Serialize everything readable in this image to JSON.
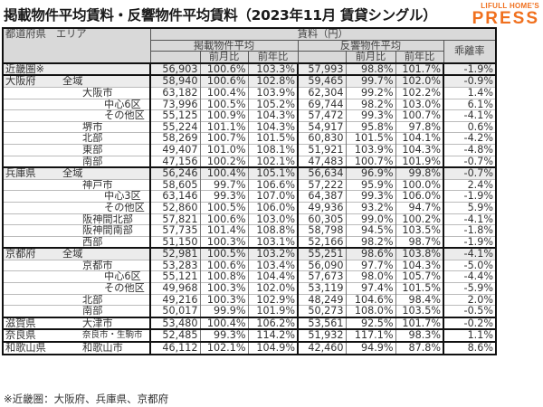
{
  "title": "掲載物件平均賃料・反響物件平均賃料（2023年11月 賃貸シングル）",
  "logo": {
    "small": "LIFULL HOME'S",
    "big": "PRESS",
    "color": "#f0701e"
  },
  "headers": {
    "region": "都道府県　エリア",
    "rent": "賃料（円）",
    "listed": "掲載物件平均",
    "response": "反響物件平均",
    "divergence": "乖離率",
    "mom": "前月比",
    "yoy": "前年比",
    "mom2": "前月比",
    "yoy2": "前年比"
  },
  "rows": [
    {
      "pref": "近畿圏※",
      "area": "",
      "indent": 0,
      "listed": "56,903",
      "l_mom": "100.6%",
      "l_yoy": "103.3%",
      "resp": "57,993",
      "r_mom": "98.8%",
      "r_yoy": "101.7%",
      "div": "-1.9%"
    },
    {
      "pref": "大阪府",
      "area": "全域",
      "indent": 1,
      "listed": "58,940",
      "l_mom": "100.6%",
      "l_yoy": "102.8%",
      "resp": "59,465",
      "r_mom": "99.7%",
      "r_yoy": "102.0%",
      "div": "-0.9%"
    },
    {
      "pref": "",
      "area": "大阪市",
      "indent": 2,
      "listed": "63,182",
      "l_mom": "100.4%",
      "l_yoy": "103.9%",
      "resp": "62,304",
      "r_mom": "99.2%",
      "r_yoy": "102.2%",
      "div": "1.4%"
    },
    {
      "pref": "",
      "area": "中心6区",
      "indent": 3,
      "listed": "73,996",
      "l_mom": "100.5%",
      "l_yoy": "105.2%",
      "resp": "69,744",
      "r_mom": "98.2%",
      "r_yoy": "103.0%",
      "div": "6.1%"
    },
    {
      "pref": "",
      "area": "その他区",
      "indent": 3,
      "listed": "55,125",
      "l_mom": "100.9%",
      "l_yoy": "104.3%",
      "resp": "57,472",
      "r_mom": "99.3%",
      "r_yoy": "100.7%",
      "div": "-4.1%"
    },
    {
      "pref": "",
      "area": "堺市",
      "indent": 2,
      "listed": "55,224",
      "l_mom": "101.1%",
      "l_yoy": "104.3%",
      "resp": "54,917",
      "r_mom": "95.8%",
      "r_yoy": "97.8%",
      "div": "0.6%"
    },
    {
      "pref": "",
      "area": "北部",
      "indent": 2,
      "listed": "58,269",
      "l_mom": "100.7%",
      "l_yoy": "101.5%",
      "resp": "60,830",
      "r_mom": "101.5%",
      "r_yoy": "104.1%",
      "div": "-4.2%"
    },
    {
      "pref": "",
      "area": "東部",
      "indent": 2,
      "listed": "49,407",
      "l_mom": "101.0%",
      "l_yoy": "108.1%",
      "resp": "51,921",
      "r_mom": "103.9%",
      "r_yoy": "104.3%",
      "div": "-4.8%"
    },
    {
      "pref": "",
      "area": "南部",
      "indent": 2,
      "listed": "47,156",
      "l_mom": "100.2%",
      "l_yoy": "102.1%",
      "resp": "47,483",
      "r_mom": "100.7%",
      "r_yoy": "101.9%",
      "div": "-0.7%"
    },
    {
      "pref": "兵庫県",
      "area": "全域",
      "indent": 1,
      "listed": "56,246",
      "l_mom": "100.4%",
      "l_yoy": "105.1%",
      "resp": "56,634",
      "r_mom": "96.9%",
      "r_yoy": "99.8%",
      "div": "-0.7%"
    },
    {
      "pref": "",
      "area": "神戸市",
      "indent": 2,
      "listed": "58,605",
      "l_mom": "99.7%",
      "l_yoy": "106.6%",
      "resp": "57,222",
      "r_mom": "95.9%",
      "r_yoy": "100.0%",
      "div": "2.4%"
    },
    {
      "pref": "",
      "area": "中心3区",
      "indent": 3,
      "listed": "63,146",
      "l_mom": "99.3%",
      "l_yoy": "107.0%",
      "resp": "64,387",
      "r_mom": "99.3%",
      "r_yoy": "106.0%",
      "div": "-1.9%"
    },
    {
      "pref": "",
      "area": "その他区",
      "indent": 3,
      "listed": "52,860",
      "l_mom": "100.5%",
      "l_yoy": "106.0%",
      "resp": "49,936",
      "r_mom": "93.2%",
      "r_yoy": "94.7%",
      "div": "5.9%"
    },
    {
      "pref": "",
      "area": "阪神間北部",
      "indent": 2,
      "listed": "57,821",
      "l_mom": "100.6%",
      "l_yoy": "103.0%",
      "resp": "60,305",
      "r_mom": "99.0%",
      "r_yoy": "100.2%",
      "div": "-4.1%"
    },
    {
      "pref": "",
      "area": "阪神間南部",
      "indent": 2,
      "listed": "57,735",
      "l_mom": "101.4%",
      "l_yoy": "108.8%",
      "resp": "58,798",
      "r_mom": "94.5%",
      "r_yoy": "103.5%",
      "div": "-1.8%"
    },
    {
      "pref": "",
      "area": "西部",
      "indent": 2,
      "listed": "51,150",
      "l_mom": "100.3%",
      "l_yoy": "103.1%",
      "resp": "52,166",
      "r_mom": "98.2%",
      "r_yoy": "98.7%",
      "div": "-1.9%"
    },
    {
      "pref": "京都府",
      "area": "全域",
      "indent": 1,
      "listed": "52,981",
      "l_mom": "100.5%",
      "l_yoy": "103.2%",
      "resp": "55,251",
      "r_mom": "98.6%",
      "r_yoy": "103.8%",
      "div": "-4.1%"
    },
    {
      "pref": "",
      "area": "京都市",
      "indent": 2,
      "listed": "53,283",
      "l_mom": "100.6%",
      "l_yoy": "103.4%",
      "resp": "56,090",
      "r_mom": "97.7%",
      "r_yoy": "104.3%",
      "div": "-5.0%"
    },
    {
      "pref": "",
      "area": "中心6区",
      "indent": 3,
      "listed": "55,121",
      "l_mom": "100.8%",
      "l_yoy": "104.4%",
      "resp": "57,673",
      "r_mom": "98.0%",
      "r_yoy": "105.7%",
      "div": "-4.4%"
    },
    {
      "pref": "",
      "area": "その他区",
      "indent": 3,
      "listed": "49,968",
      "l_mom": "100.3%",
      "l_yoy": "102.0%",
      "resp": "53,119",
      "r_mom": "97.4%",
      "r_yoy": "101.5%",
      "div": "-5.9%"
    },
    {
      "pref": "",
      "area": "北部",
      "indent": 2,
      "listed": "49,216",
      "l_mom": "100.3%",
      "l_yoy": "102.9%",
      "resp": "48,249",
      "r_mom": "104.6%",
      "r_yoy": "98.4%",
      "div": "2.0%"
    },
    {
      "pref": "",
      "area": "南部",
      "indent": 2,
      "listed": "50,017",
      "l_mom": "99.9%",
      "l_yoy": "101.9%",
      "resp": "50,273",
      "r_mom": "108.0%",
      "r_yoy": "103.5%",
      "div": "-0.5%"
    },
    {
      "pref": "滋賀県",
      "area": "大津市",
      "indent": 2,
      "listed": "53,480",
      "l_mom": "100.4%",
      "l_yoy": "106.2%",
      "resp": "53,561",
      "r_mom": "92.5%",
      "r_yoy": "101.7%",
      "div": "-0.2%"
    },
    {
      "pref": "奈良県",
      "area": "奈良市・生駒市",
      "indent": 2,
      "listed": "52,485",
      "l_mom": "99.3%",
      "l_yoy": "114.2%",
      "resp": "51,932",
      "r_mom": "117.1%",
      "r_yoy": "98.3%",
      "div": "1.1%"
    },
    {
      "pref": "和歌山県",
      "area": "和歌山市",
      "indent": 2,
      "listed": "46,112",
      "l_mom": "102.1%",
      "l_yoy": "104.9%",
      "resp": "42,460",
      "r_mom": "94.9%",
      "r_yoy": "87.8%",
      "div": "8.6%"
    }
  ],
  "footnote": "※近畿圏：大阪府、兵庫県、京都府"
}
